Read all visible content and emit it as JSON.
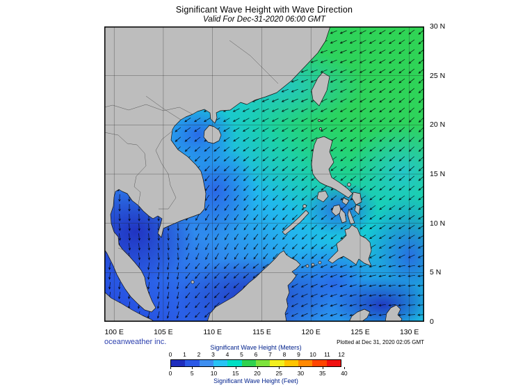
{
  "header": {
    "title": "Significant Wave Height with Wave Direction",
    "valid_time": "Valid For Dec-31-2020 06:00 GMT"
  },
  "map": {
    "lat_labels": [
      "30 N",
      "25 N",
      "20 N",
      "15 N",
      "10 N",
      "5 N",
      "0"
    ],
    "lon_labels": [
      "100 E",
      "105 E",
      "110 E",
      "115 E",
      "120 E",
      "125 E",
      "130 E"
    ]
  },
  "footer": {
    "credit": "oceanweather inc.",
    "plotted": "Plotted at Dec 31, 2020 02:05 GMT"
  },
  "legend": {
    "meters_label": "Significant Wave Height (Meters)",
    "feet_label": "Significant Wave Height (Feet)",
    "meter_ticks": [
      "0",
      "1",
      "2",
      "3",
      "4",
      "5",
      "6",
      "7",
      "8",
      "9",
      "10",
      "11",
      "12"
    ],
    "feet_ticks": [
      "0",
      "5",
      "10",
      "15",
      "20",
      "25",
      "30",
      "35",
      "40"
    ],
    "colors": [
      "#1f2dbd",
      "#2b59e6",
      "#3f8ff0",
      "#29c3f5",
      "#00dfc4",
      "#2fd24f",
      "#7de23c",
      "#f2ef1f",
      "#ffc400",
      "#ff8800",
      "#ff4400",
      "#f01010"
    ]
  },
  "colors": {
    "land": "#bdbdbd",
    "coastline": "#111111",
    "credit_text": "#2b3fae",
    "legend_label": "#00218c",
    "ocean_low": "#2547dd",
    "ocean_mid": "#22b6ee",
    "ocean_high": "#3ad648"
  },
  "chart_data": {
    "type": "heatmap",
    "title": "Significant Wave Height with Wave Direction",
    "subtitle": "Valid For Dec-31-2020 06:00 GMT",
    "x_ticks": [
      "100 E",
      "105 E",
      "110 E",
      "115 E",
      "120 E",
      "125 E",
      "130 E"
    ],
    "y_ticks": [
      "30 N",
      "25 N",
      "20 N",
      "15 N",
      "10 N",
      "5 N",
      "0"
    ],
    "colorbar": {
      "meters": [
        0,
        1,
        2,
        3,
        4,
        5,
        6,
        7,
        8,
        9,
        10,
        11,
        12
      ],
      "feet": [
        0,
        5,
        10,
        15,
        20,
        25,
        30,
        35,
        40
      ],
      "colors": [
        "#1f2dbd",
        "#2b59e6",
        "#3f8ff0",
        "#29c3f5",
        "#00dfc4",
        "#2fd24f",
        "#7de23c",
        "#f2ef1f",
        "#ffc400",
        "#ff8800",
        "#ff4400",
        "#f01010"
      ]
    },
    "estimated_wave_height_m_grid": {
      "lons": [
        100,
        105,
        110,
        115,
        120,
        125,
        130
      ],
      "lats": [
        30,
        25,
        20,
        15,
        10,
        5,
        0
      ],
      "values": [
        [
          null,
          null,
          null,
          null,
          3.5,
          4,
          4
        ],
        [
          null,
          null,
          null,
          3,
          3.5,
          4,
          4
        ],
        [
          null,
          null,
          2.5,
          3.5,
          4,
          4,
          4
        ],
        [
          null,
          1.5,
          2.5,
          3.5,
          3,
          null,
          3.5
        ],
        [
          1,
          1.5,
          2,
          2.5,
          2,
          1.5,
          2.5
        ],
        [
          0.5,
          1.5,
          2,
          1.5,
          1,
          1,
          1.5
        ],
        [
          0.5,
          0.5,
          1,
          0.5,
          null,
          0.5,
          1
        ]
      ]
    },
    "wave_direction_note": "arrows point predominantly toward the southwest (seas from the northeast monsoon)",
    "legend_position": "bottom"
  }
}
